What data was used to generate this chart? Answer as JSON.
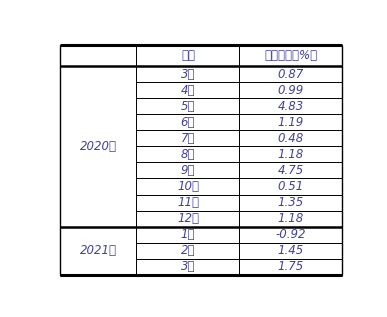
{
  "header": [
    "月份",
    "环比增速（%）"
  ],
  "year_groups": [
    {
      "year": "2020年",
      "rows": [
        [
          "3月",
          "0.87"
        ],
        [
          "4月",
          "0.99"
        ],
        [
          "5月",
          "4.83"
        ],
        [
          "6月",
          "1.19"
        ],
        [
          "7月",
          "0.48"
        ],
        [
          "8月",
          "1.18"
        ],
        [
          "9月",
          "4.75"
        ],
        [
          "10月",
          "0.51"
        ],
        [
          "11月",
          "1.35"
        ],
        [
          "12月",
          "1.18"
        ]
      ]
    },
    {
      "year": "2021年",
      "rows": [
        [
          "1月",
          "-0.92"
        ],
        [
          "2月",
          "1.45"
        ],
        [
          "3月",
          "1.75"
        ]
      ]
    }
  ],
  "text_color": "#4040a0",
  "border_color": "#000000",
  "bg_color": "#ffffff",
  "header_fontsize": 8.5,
  "cell_fontsize": 8.5,
  "year_fontsize": 8.5,
  "figwidth": 3.87,
  "figheight": 3.17,
  "dpi": 100
}
